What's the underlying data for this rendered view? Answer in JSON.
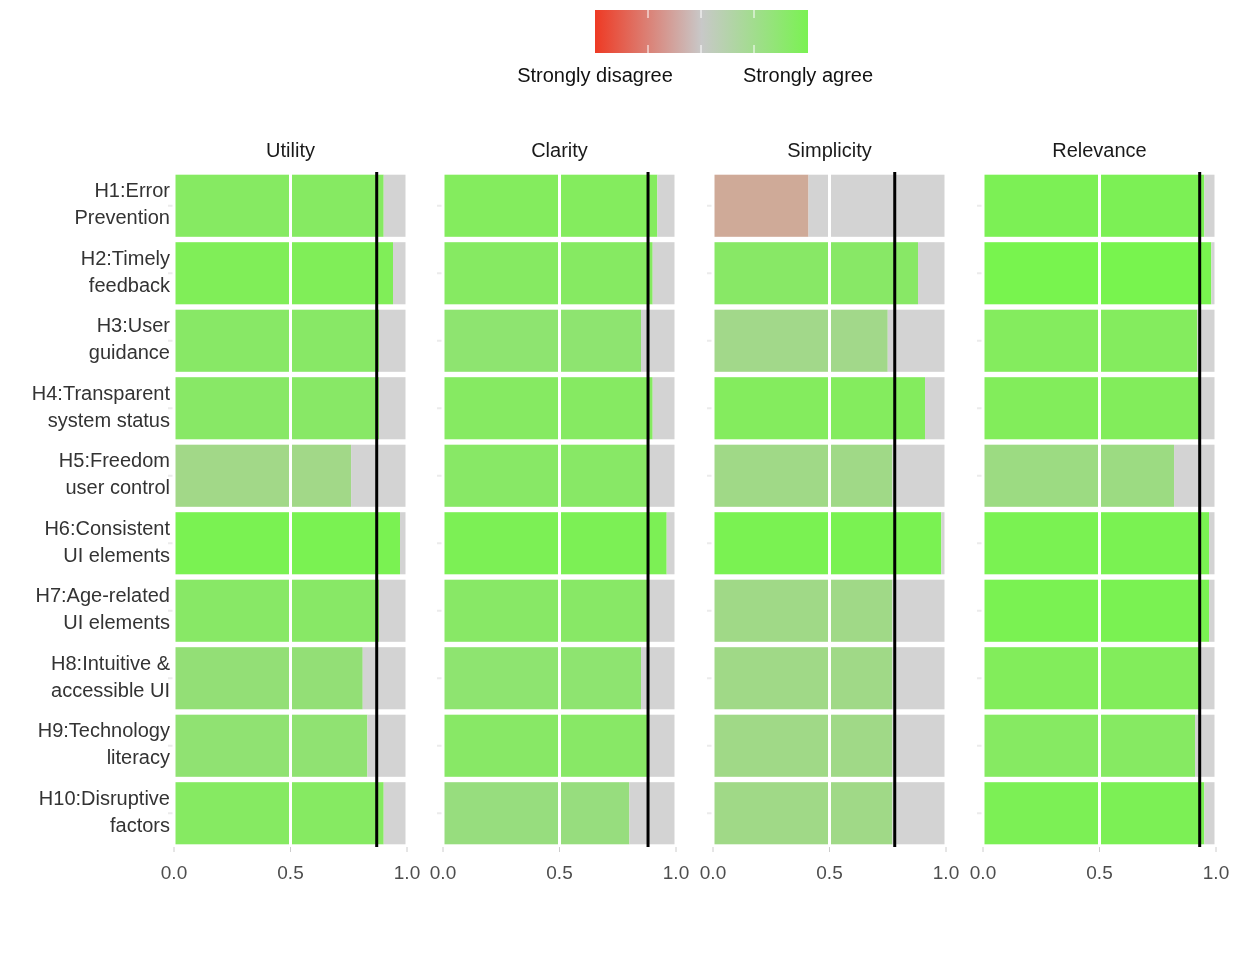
{
  "chart_data": [
    {
      "type": "bar",
      "title": "Utility",
      "orientation": "horizontal",
      "stacked": true,
      "categories": [
        "H1:Error Prevention",
        "H2:Timely feedback",
        "H3:User guidance",
        "H4:Transparent system status",
        "H5:Freedom user control",
        "H6:Consistent UI elements",
        "H7:Age-related UI elements",
        "H8:Intuitive & accessible UI",
        "H9:Technology literacy",
        "H10:Disruptive factors"
      ],
      "series": [
        {
          "values": [
            0.9,
            0.94,
            0.88,
            0.88,
            0.76,
            0.97,
            0.88,
            0.81,
            0.83,
            0.9
          ],
          "colors": [
            "#86ea62",
            "#80ee58",
            "#88e866",
            "#88e866",
            "#a2d888",
            "#7af252",
            "#88e866",
            "#93df76",
            "#90e272",
            "#86ea62"
          ]
        },
        {
          "values": [
            0.1,
            0.06,
            0.12,
            0.12,
            0.24,
            0.03,
            0.12,
            0.19,
            0.17,
            0.1
          ],
          "color": "#d3d3d3"
        }
      ],
      "xlim": [
        0,
        1
      ],
      "xticks": [
        {
          "value": 0,
          "label": "0.0"
        },
        {
          "value": 0.5,
          "label": "0.5"
        },
        {
          "value": 1,
          "label": "1.0"
        }
      ],
      "grid": "x",
      "ref_lines": [
        {
          "axis": "x",
          "value": 0.87,
          "color": "#000000"
        }
      ],
      "annotations": [
        "Strongly disagree",
        "Strongly agree"
      ]
    },
    {
      "type": "bar",
      "title": "Clarity",
      "orientation": "horizontal",
      "stacked": true,
      "tick_labels": "x",
      "categories": [
        "H1:Error Prevention",
        "H2:Timely feedback",
        "H3:User guidance",
        "H4:Transparent system status",
        "H5:Freedom user control",
        "H6:Consistent UI elements",
        "H7:Age-related UI elements",
        "H8:Intuitive & accessible UI",
        "H9:Technology literacy",
        "H10:Disruptive factors"
      ],
      "series": [
        {
          "values": [
            0.92,
            0.9,
            0.85,
            0.9,
            0.88,
            0.96,
            0.88,
            0.85,
            0.88,
            0.8
          ],
          "colors": [
            "#84ec5e",
            "#86ea62",
            "#8ee470",
            "#86ea62",
            "#88e866",
            "#7cf055",
            "#88e866",
            "#8ee470",
            "#88e866",
            "#97dd7e"
          ]
        },
        {
          "values": [
            0.08,
            0.1,
            0.15,
            0.1,
            0.12,
            0.04,
            0.12,
            0.15,
            0.12,
            0.2
          ],
          "color": "#d3d3d3"
        }
      ],
      "xlim": [
        0,
        1
      ],
      "xticks": [
        {
          "value": 0,
          "label": "0.0"
        },
        {
          "value": 0.5,
          "label": "0.5"
        },
        {
          "value": 1,
          "label": "1.0"
        }
      ],
      "grid": "x",
      "ref_lines": [
        {
          "axis": "x",
          "value": 0.88,
          "color": "#000000"
        }
      ]
    },
    {
      "type": "bar",
      "title": "Simplicity",
      "orientation": "horizontal",
      "stacked": true,
      "tick_labels": "x",
      "categories": [
        "H1:Error Prevention",
        "H2:Timely feedback",
        "H3:User guidance",
        "H4:Transparent system status",
        "H5:Freedom user control",
        "H6:Consistent UI elements",
        "H7:Age-related UI elements",
        "H8:Intuitive & accessible UI",
        "H9:Technology literacy",
        "H10:Disruptive factors"
      ],
      "series": [
        {
          "values": [
            0.41,
            0.88,
            0.75,
            0.91,
            0.77,
            0.98,
            0.77,
            0.77,
            0.77,
            0.77
          ],
          "colors": [
            "#cfaa98",
            "#88e866",
            "#a2d88a",
            "#84ec5e",
            "#a0d987",
            "#7af252",
            "#a0d987",
            "#a0d987",
            "#a0d987",
            "#a0d987"
          ]
        },
        {
          "values": [
            0.59,
            0.12,
            0.25,
            0.09,
            0.23,
            0.02,
            0.23,
            0.23,
            0.23,
            0.23
          ],
          "color": "#d3d3d3"
        }
      ],
      "xlim": [
        0,
        1
      ],
      "xticks": [
        {
          "value": 0,
          "label": "0.0"
        },
        {
          "value": 0.5,
          "label": "0.5"
        },
        {
          "value": 1,
          "label": "1.0"
        }
      ],
      "grid": "x",
      "ref_lines": [
        {
          "axis": "x",
          "value": 0.78,
          "color": "#000000"
        }
      ]
    },
    {
      "type": "bar",
      "title": "Relevance",
      "orientation": "horizontal",
      "stacked": true,
      "tick_labels": "x",
      "categories": [
        "H1:Error Prevention",
        "H2:Timely feedback",
        "H3:User guidance",
        "H4:Transparent system status",
        "H5:Freedom user control",
        "H6:Consistent UI elements",
        "H7:Age-related UI elements",
        "H8:Intuitive & accessible UI",
        "H9:Technology literacy",
        "H10:Disruptive factors"
      ],
      "series": [
        {
          "values": [
            0.95,
            0.98,
            0.92,
            0.93,
            0.82,
            0.97,
            0.97,
            0.93,
            0.91,
            0.95
          ],
          "colors": [
            "#7cf055",
            "#78f44e",
            "#84ec5e",
            "#82ed5b",
            "#9cdb82",
            "#7af252",
            "#7af252",
            "#82ed5b",
            "#86ea62",
            "#7cf055"
          ]
        },
        {
          "values": [
            0.05,
            0.02,
            0.08,
            0.07,
            0.18,
            0.03,
            0.03,
            0.07,
            0.09,
            0.05
          ],
          "color": "#d3d3d3"
        }
      ],
      "xlim": [
        0,
        1
      ],
      "xticks": [
        {
          "value": 0,
          "label": "0.0"
        },
        {
          "value": 0.5,
          "label": "0.5"
        },
        {
          "value": 1,
          "label": "1.0"
        }
      ],
      "grid": "x",
      "ref_lines": [
        {
          "axis": "x",
          "value": 0.93,
          "color": "#000000"
        }
      ]
    }
  ]
}
